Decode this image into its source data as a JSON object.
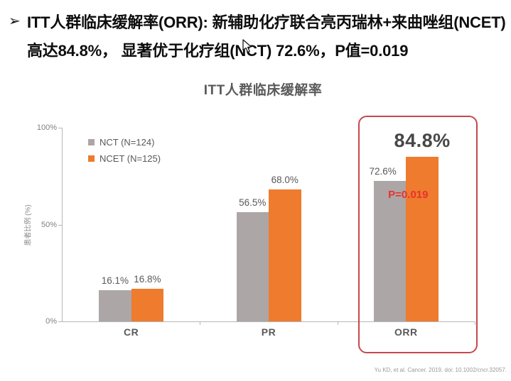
{
  "header": {
    "bullet": "➢",
    "line1": "ITT人群临床缓解率(ORR): 新辅助化疗联合亮丙瑞林+来曲唑组(NCET)",
    "line2": "高达84.8%， 显著优于化疗组(NCT) 72.6%，P值=0.019"
  },
  "chart_data": {
    "type": "bar",
    "title": "ITT人群临床缓解率",
    "categories": [
      "CR",
      "PR",
      "ORR"
    ],
    "series": [
      {
        "name": "NCT (N=124)",
        "color": "#ada6a6",
        "values": [
          16.1,
          56.5,
          72.6
        ]
      },
      {
        "name": "NCET (N=125)",
        "color": "#ee7b2e",
        "values": [
          16.8,
          68.0,
          84.8
        ]
      }
    ],
    "value_labels": [
      [
        "16.1%",
        "56.5%",
        "72.6%"
      ],
      [
        "16.8%",
        "68.0%",
        "84.8%"
      ]
    ],
    "ylabel": "患者比例 (%)",
    "yticks": [
      {
        "pct": 0,
        "label": "0%"
      },
      {
        "pct": 50,
        "label": "50%"
      },
      {
        "pct": 100,
        "label": "100%"
      }
    ],
    "ylim": [
      0,
      100
    ],
    "grid": false,
    "legend_position": "top-left",
    "annotations": {
      "p_value": "P=0.019",
      "highlight_category": "ORR",
      "emphasized_value": "84.8%"
    }
  },
  "colors": {
    "bar_gray": "#ada6a6",
    "bar_orange": "#ee7b2e",
    "p_value_red": "#e8312e",
    "highlight_border": "#c4494e",
    "axis_gray": "#b7b7b7",
    "text_gray": "#595959"
  },
  "citation": "Yu KD, et al. Cancer. 2019. doi: 10.1002/cncr.32057."
}
